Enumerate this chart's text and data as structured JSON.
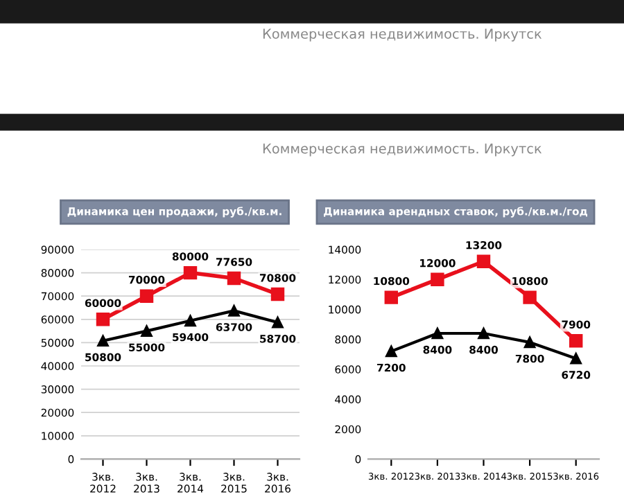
{
  "chart_data": [
    {
      "type": "line",
      "title": "Динамика цен продажи, руб./кв.м.",
      "annotations": [
        "Коммерческая недвижимость. Иркутск",
        "Коммерческая недвижимость. Иркутск"
      ],
      "categories": [
        "3кв.\n2012",
        "3кв.\n2013",
        "3кв.\n2014",
        "3кв.\n2015",
        "3кв.\n2016"
      ],
      "series": [
        {
          "color": "#e8101c",
          "marker": "square",
          "values": [
            60000,
            70000,
            80000,
            77650,
            70800
          ]
        },
        {
          "color": "#000000",
          "marker": "triangle",
          "values": [
            50800,
            55000,
            59400,
            63700,
            58700
          ]
        }
      ],
      "ylim": [
        0,
        90000
      ],
      "yticks": [
        0,
        10000,
        20000,
        30000,
        40000,
        50000,
        60000,
        70000,
        80000,
        90000
      ],
      "grid": "y",
      "data_labels": true,
      "legend": false
    },
    {
      "type": "line",
      "title": "Динамика арендных ставок, руб./кв.м./год",
      "categories": [
        "3кв. 2012",
        "3кв. 2013",
        "3кв. 2014",
        "3кв. 2015",
        "3кв. 2016"
      ],
      "series": [
        {
          "color": "#e8101c",
          "marker": "square",
          "values": [
            10800,
            12000,
            13200,
            10800,
            7900
          ]
        },
        {
          "color": "#000000",
          "marker": "triangle",
          "values": [
            7200,
            8400,
            8400,
            7800,
            6720
          ]
        }
      ],
      "ylim": [
        0,
        14000
      ],
      "yticks": [
        0,
        2000,
        4000,
        6000,
        8000,
        10000,
        12000,
        14000
      ],
      "grid": false,
      "data_labels": true,
      "legend": false
    }
  ]
}
